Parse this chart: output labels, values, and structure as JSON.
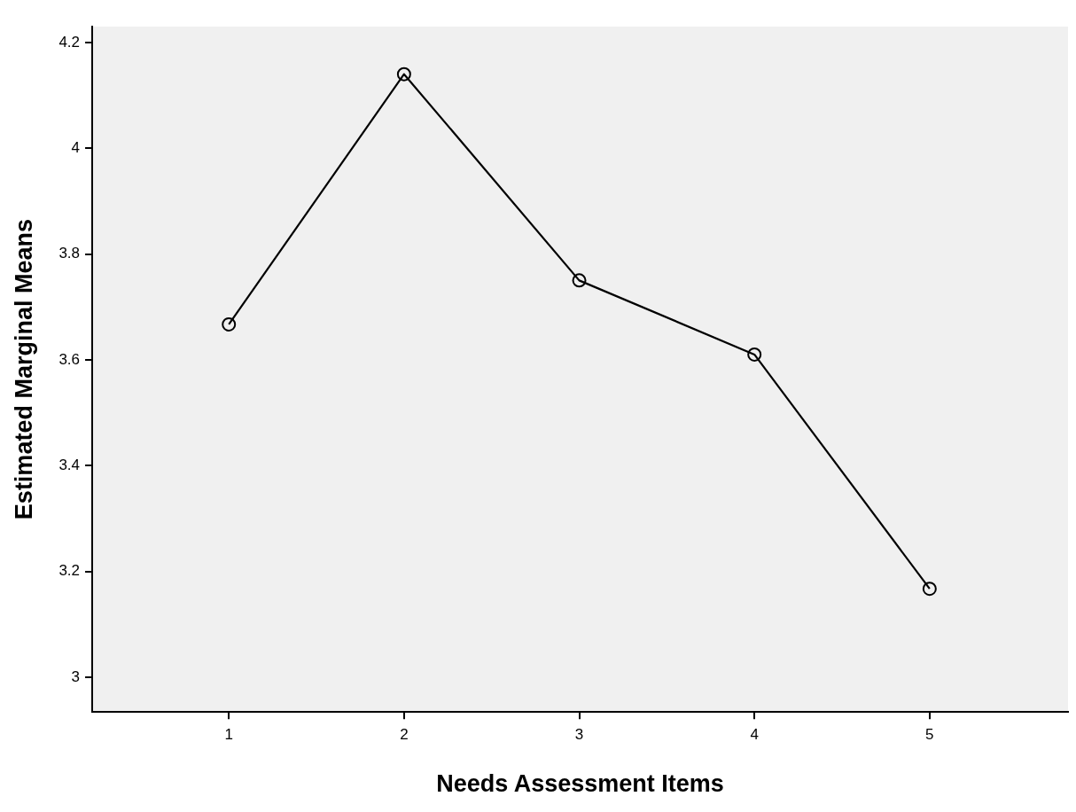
{
  "chart_data": {
    "type": "line",
    "xlabel": "Needs Assessment Items",
    "ylabel": "Estimated Marginal Means",
    "x": [
      1,
      2,
      3,
      4,
      5
    ],
    "series": [
      {
        "color": "#000000",
        "values": [
          3.667,
          4.14,
          3.75,
          3.61,
          3.167
        ]
      }
    ],
    "xlim": [
      0.22,
      5.79
    ],
    "xticks": [
      1,
      2,
      3,
      4,
      5
    ],
    "ylim": [
      2.934,
      4.23
    ],
    "yticks": [
      3,
      3.2,
      3.4,
      3.6,
      3.8,
      4,
      4.2
    ],
    "grid": false,
    "legend": false,
    "marker": "circle",
    "line_style": "solid"
  }
}
